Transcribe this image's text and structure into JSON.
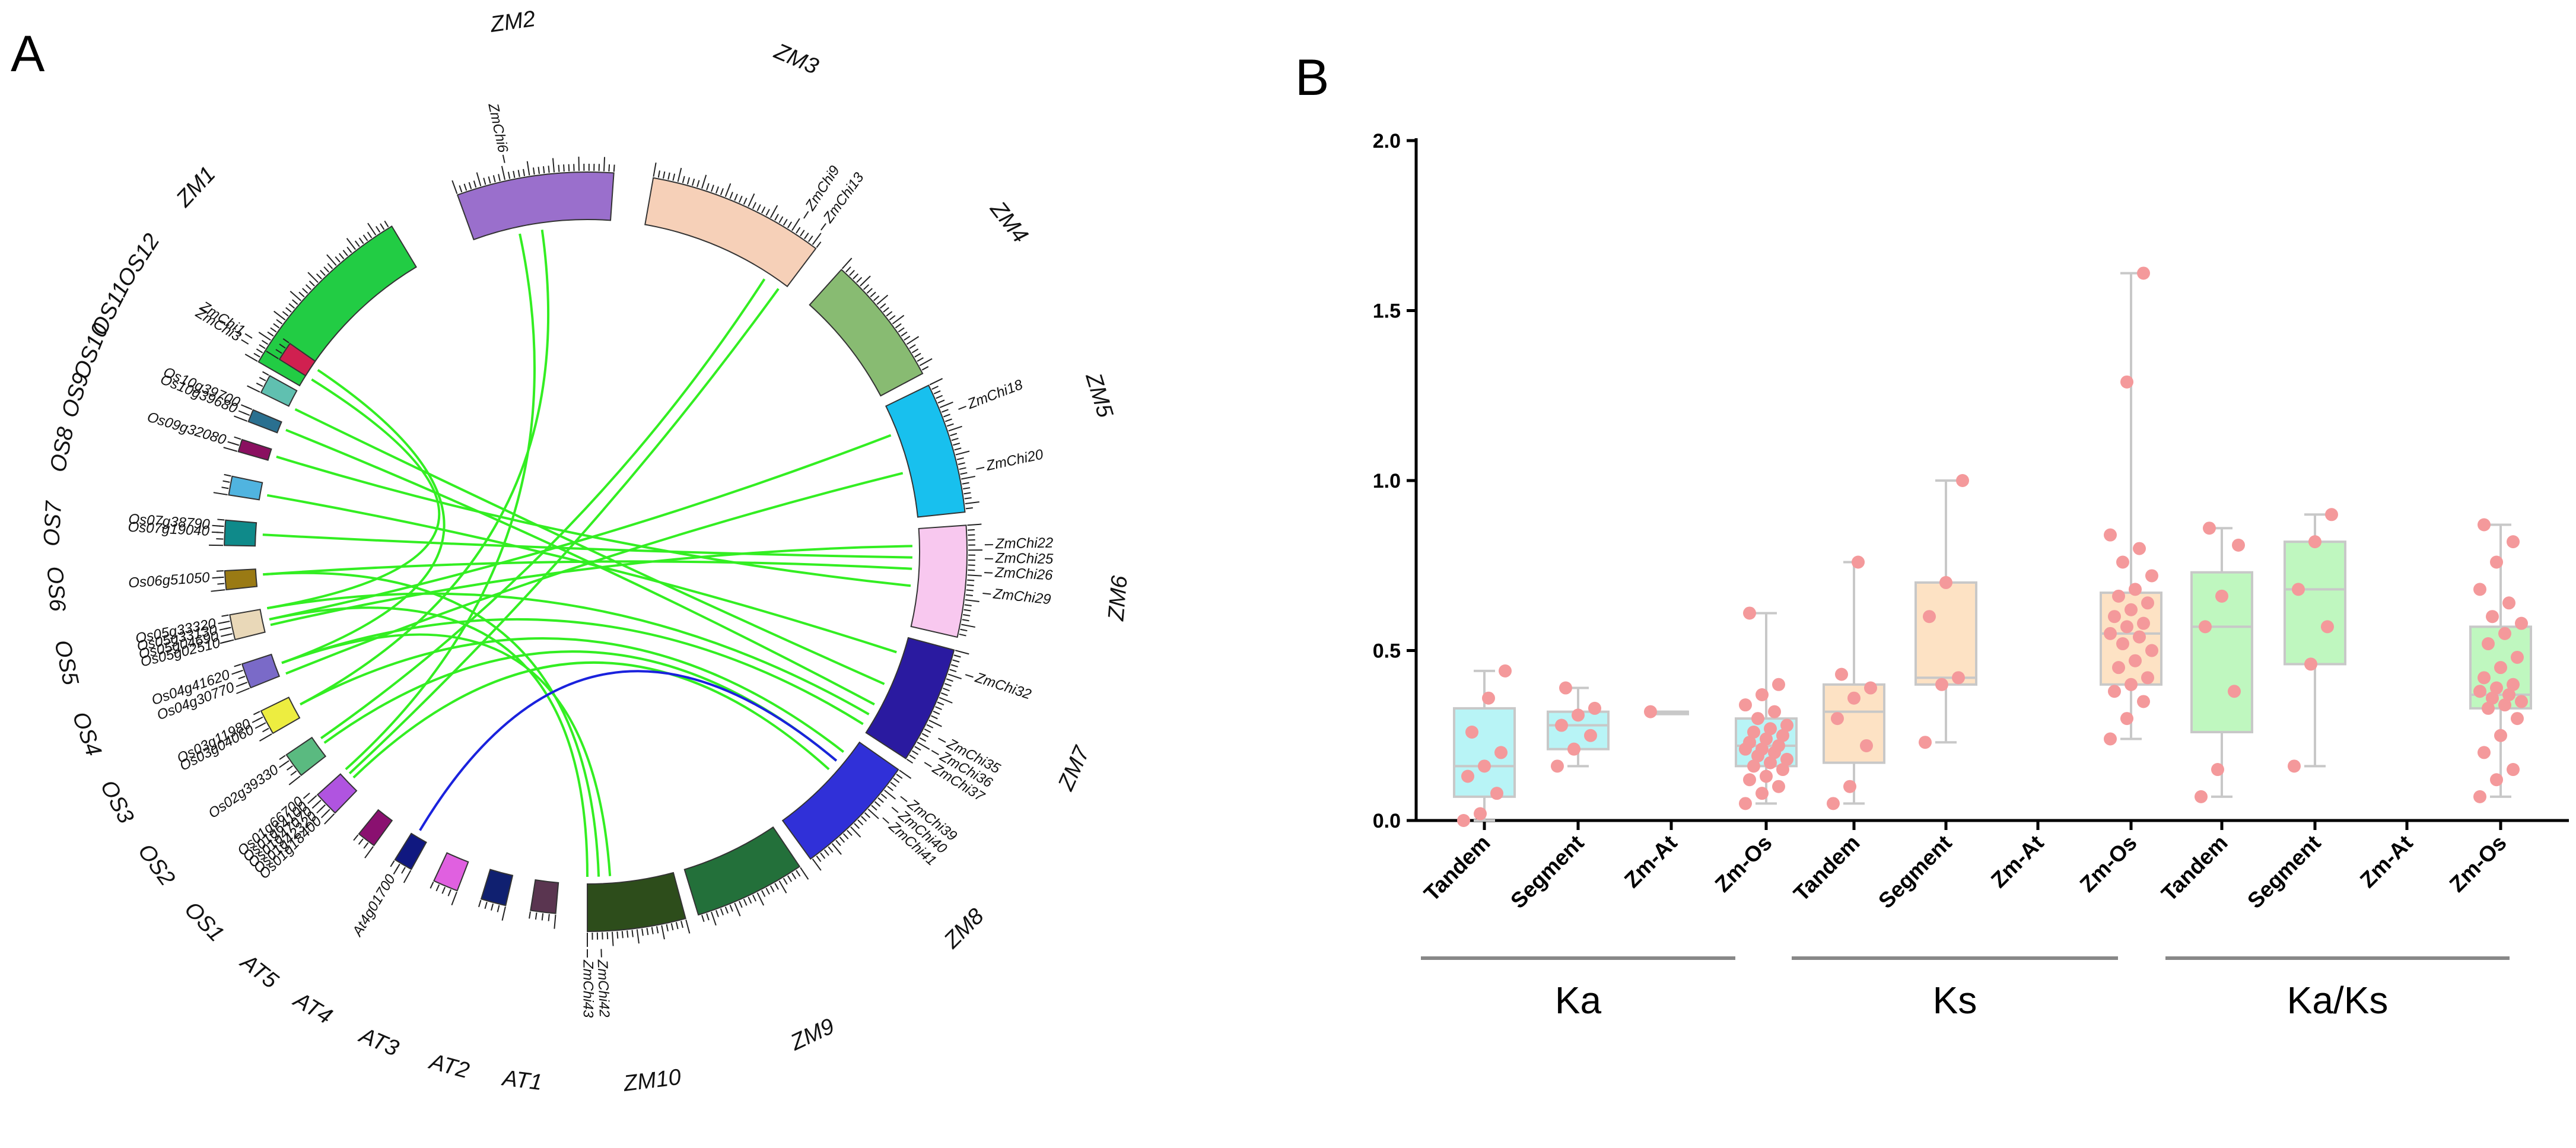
{
  "panel_a": {
    "letter": "A",
    "chromosomes": [
      {
        "name": "ZM1",
        "color": "#22cc44",
        "a0": 210,
        "a1": 239,
        "label_a": 223
      },
      {
        "name": "ZM2",
        "color": "#9a6fcc",
        "a0": 250,
        "a1": 274,
        "label_a": 262
      },
      {
        "name": "ZM3",
        "color": "#f6d0b8",
        "a0": 280,
        "a1": 307,
        "label_a": 293
      },
      {
        "name": "ZM4",
        "color": "#88bb72",
        "a0": 312,
        "a1": 332,
        "label_a": 322
      },
      {
        "name": "ZM5",
        "color": "#18c0ee",
        "a0": 334,
        "a1": 354,
        "label_a": 343
      },
      {
        "name": "ZM6",
        "color": "#f8c8ef",
        "a0": 356,
        "a1": 373,
        "label_a": 365
      },
      {
        "name": "ZM7",
        "color": "#2a1aa0",
        "a0": 375,
        "a1": 393,
        "label_a": 384
      },
      {
        "name": "ZM8",
        "color": "#3030d8",
        "a0": 395,
        "a1": 414,
        "label_a": 405
      },
      {
        "name": "ZM9",
        "color": "#23703a",
        "a0": 416,
        "a1": 433,
        "label_a": 425
      },
      {
        "name": "ZM10",
        "color": "#2d4d1b",
        "a0": 435,
        "a1": 450,
        "label_a": 443
      },
      {
        "name": "AT1",
        "color": "#5a3550",
        "a0": 455,
        "a1": 459,
        "label_a": 457
      },
      {
        "name": "AT2",
        "color": "#102070",
        "a0": 463,
        "a1": 467,
        "label_a": 465
      },
      {
        "name": "AT3",
        "color": "#e060e0",
        "a0": 471,
        "a1": 475,
        "label_a": 473
      },
      {
        "name": "AT4",
        "color": "#101880",
        "a0": 479,
        "a1": 482,
        "label_a": 481
      },
      {
        "name": "AT5",
        "color": "#8a1070",
        "a0": 486,
        "a1": 489,
        "label_a": 488
      },
      {
        "name": "OS1",
        "color": "#b054e0",
        "a0": 494,
        "a1": 498,
        "label_a": 496
      },
      {
        "name": "OS2",
        "color": "#5aba80",
        "a0": 502,
        "a1": 506,
        "label_a": 504
      },
      {
        "name": "OS3",
        "color": "#eded40",
        "a0": 510,
        "a1": 514,
        "label_a": 512
      },
      {
        "name": "OS4",
        "color": "#7a6ac8",
        "a0": 518,
        "a1": 522,
        "label_a": 520
      },
      {
        "name": "OS5",
        "color": "#e9d8b8",
        "a0": 526,
        "a1": 530,
        "label_a": 528
      },
      {
        "name": "OS6",
        "color": "#9a7a14",
        "a0": 534,
        "a1": 537,
        "label_a": 536
      },
      {
        "name": "OS7",
        "color": "#0f8a8a",
        "a0": 541,
        "a1": 545,
        "label_a": 543
      },
      {
        "name": "OS8",
        "color": "#50b4e0",
        "a0": 549,
        "a1": 552,
        "label_a": 551
      },
      {
        "name": "OS9",
        "color": "#8a1060",
        "a0": 556,
        "a1": 558,
        "label_a": 557
      },
      {
        "name": "OS10",
        "color": "#2a7090",
        "a0": 561,
        "a1": 563,
        "label_a": 562
      },
      {
        "name": "OS11",
        "color": "#60c0b0",
        "a0": 566,
        "a1": 569,
        "label_a": 567
      },
      {
        "name": "OS12",
        "color": "#d02050",
        "a0": 572,
        "a1": 575,
        "label_a": 573
      }
    ],
    "genes": [
      {
        "name": "ZmChi3",
        "a": 211.5
      },
      {
        "name": "ZmChi1",
        "a": 212.5
      },
      {
        "name": "ZmChi6",
        "a": 258
      },
      {
        "name": "ZmChi13",
        "a": 306
      },
      {
        "name": "ZmChi9",
        "a": 303
      },
      {
        "name": "ZmChi18",
        "a": 339
      },
      {
        "name": "ZmChi20",
        "a": 348
      },
      {
        "name": "ZmChi22",
        "a": 359
      },
      {
        "name": "ZmChi25",
        "a": 361
      },
      {
        "name": "ZmChi26",
        "a": 363
      },
      {
        "name": "ZmChi29",
        "a": 366
      },
      {
        "name": "ZmChi32",
        "a": 378
      },
      {
        "name": "ZmChi35",
        "a": 388
      },
      {
        "name": "ZmChi36",
        "a": 390
      },
      {
        "name": "ZmChi37",
        "a": 392
      },
      {
        "name": "ZmChi39",
        "a": 398
      },
      {
        "name": "ZmChi40",
        "a": 400
      },
      {
        "name": "ZmChi41",
        "a": 402
      },
      {
        "name": "ZmChi42",
        "a": 448
      },
      {
        "name": "ZmChi43",
        "a": 450
      },
      {
        "name": "At4g01700",
        "a": 481
      },
      {
        "name": "Os01g18400",
        "a": 495
      },
      {
        "name": "Os01g42320",
        "a": 496
      },
      {
        "name": "Os01g47070",
        "a": 497
      },
      {
        "name": "Os01g64100",
        "a": 498
      },
      {
        "name": "Os01g66700",
        "a": 499
      },
      {
        "name": "Os02g39330",
        "a": 505
      },
      {
        "name": "Os03g04060",
        "a": 512
      },
      {
        "name": "Os03g11980",
        "a": 513
      },
      {
        "name": "Os04g30770",
        "a": 519
      },
      {
        "name": "Os04g41620",
        "a": 521
      },
      {
        "name": "Os05g02510",
        "a": 526
      },
      {
        "name": "Os05g04690",
        "a": 527
      },
      {
        "name": "Os05g33130",
        "a": 528
      },
      {
        "name": "Os05g33320",
        "a": 529
      },
      {
        "name": "Os06g51050",
        "a": 536
      },
      {
        "name": "Os07g19040",
        "a": 543
      },
      {
        "name": "Os07g38790",
        "a": 544
      },
      {
        "name": "Os09g32080",
        "a": 557
      },
      {
        "name": "Os10g39680",
        "a": 562
      },
      {
        "name": "Os10g39700",
        "a": 563
      }
    ],
    "links": [
      {
        "from": 346,
        "to": 518,
        "color": "#33ee22"
      },
      {
        "from": 339,
        "to": 528,
        "color": "#33ee22"
      },
      {
        "from": 361,
        "to": 543,
        "color": "#33ee22"
      },
      {
        "from": 363,
        "to": 536,
        "color": "#33ee22"
      },
      {
        "from": 359,
        "to": 527,
        "color": "#33ee22"
      },
      {
        "from": 366,
        "to": 557,
        "color": "#33ee22"
      },
      {
        "from": 378,
        "to": 550,
        "color": "#33ee22"
      },
      {
        "from": 384,
        "to": 566,
        "color": "#33ee22"
      },
      {
        "from": 388,
        "to": 562,
        "color": "#33ee22"
      },
      {
        "from": 390,
        "to": 530,
        "color": "#33ee22"
      },
      {
        "from": 392,
        "to": 520,
        "color": "#33ee22"
      },
      {
        "from": 398,
        "to": 512,
        "color": "#33ee22"
      },
      {
        "from": 400,
        "to": 504,
        "color": "#33ee22"
      },
      {
        "from": 402,
        "to": 496,
        "color": "#33ee22"
      },
      {
        "from": 448,
        "to": 536,
        "color": "#33ee22"
      },
      {
        "from": 450,
        "to": 528,
        "color": "#33ee22"
      },
      {
        "from": 446,
        "to": 520,
        "color": "#33ee22"
      },
      {
        "from": 306,
        "to": 497,
        "color": "#33ee22"
      },
      {
        "from": 303,
        "to": 505,
        "color": "#33ee22"
      },
      {
        "from": 258,
        "to": 498,
        "color": "#33ee22"
      },
      {
        "from": 262,
        "to": 512,
        "color": "#33ee22"
      },
      {
        "from": 212,
        "to": 530,
        "color": "#33ee22"
      },
      {
        "from": 214,
        "to": 520,
        "color": "#33ee22"
      },
      {
        "from": 400,
        "to": 481,
        "color": "#1a22dd"
      }
    ]
  },
  "panel_b": {
    "letter": "B"
  },
  "chart_data": {
    "type": "box",
    "title": "",
    "xlabel": "",
    "ylabel": "",
    "ylim": [
      0,
      2.0
    ],
    "yticks": [
      "0.0",
      "0.5",
      "1.0",
      "1.5",
      "2.0"
    ],
    "point_color": "#f4999b",
    "groups": [
      {
        "label": "Ka",
        "categories": [
          "Tandem",
          "Segment",
          "Zm-At",
          "Zm-Os"
        ]
      },
      {
        "label": "Ks",
        "categories": [
          "Tandem",
          "Segment",
          "Zm-At",
          "Zm-Os"
        ]
      },
      {
        "label": "Ka/Ks",
        "categories": [
          "Tandem",
          "Segment",
          "Zm-At",
          "Zm-Os"
        ]
      }
    ],
    "series": [
      {
        "name": "Ka Tandem",
        "color": "#b8f4f6",
        "min": 0.0,
        "q1": 0.07,
        "median": 0.16,
        "q3": 0.33,
        "max": 0.44,
        "points": [
          0.0,
          0.02,
          0.08,
          0.13,
          0.16,
          0.2,
          0.26,
          0.36,
          0.44
        ]
      },
      {
        "name": "Ka Segment",
        "color": "#b8f4f6",
        "min": 0.16,
        "q1": 0.21,
        "median": 0.28,
        "q3": 0.32,
        "max": 0.39,
        "points": [
          0.16,
          0.21,
          0.25,
          0.28,
          0.31,
          0.33,
          0.39
        ]
      },
      {
        "name": "Ka Zm-At",
        "color": "#b8f4f6",
        "min": 0.32,
        "q1": 0.32,
        "median": 0.32,
        "q3": 0.32,
        "max": 0.32,
        "points": [
          0.32
        ]
      },
      {
        "name": "Ka Zm-Os",
        "color": "#b8f4f6",
        "min": 0.05,
        "q1": 0.16,
        "median": 0.22,
        "q3": 0.3,
        "max": 0.61,
        "points": [
          0.05,
          0.08,
          0.1,
          0.12,
          0.13,
          0.15,
          0.16,
          0.17,
          0.18,
          0.19,
          0.2,
          0.21,
          0.21,
          0.22,
          0.23,
          0.24,
          0.25,
          0.26,
          0.27,
          0.28,
          0.3,
          0.32,
          0.34,
          0.37,
          0.4,
          0.61
        ]
      },
      {
        "name": "Ks Tandem",
        "color": "#fde2c4",
        "min": 0.05,
        "q1": 0.17,
        "median": 0.32,
        "q3": 0.4,
        "max": 0.76,
        "points": [
          0.05,
          0.1,
          0.22,
          0.3,
          0.36,
          0.39,
          0.43,
          0.76
        ]
      },
      {
        "name": "Ks Segment",
        "color": "#fde2c4",
        "min": 0.23,
        "q1": 0.4,
        "median": 0.42,
        "q3": 0.7,
        "max": 1.0,
        "points": [
          0.23,
          0.4,
          0.42,
          0.6,
          0.7,
          1.0
        ]
      },
      {
        "name": "Ks Zm-Os",
        "color": "#fde2c4",
        "min": 0.24,
        "q1": 0.4,
        "median": 0.55,
        "q3": 0.67,
        "max": 1.61,
        "points": [
          0.24,
          0.3,
          0.35,
          0.38,
          0.4,
          0.42,
          0.45,
          0.47,
          0.5,
          0.52,
          0.54,
          0.55,
          0.57,
          0.58,
          0.6,
          0.62,
          0.64,
          0.66,
          0.68,
          0.72,
          0.76,
          0.8,
          0.84,
          1.29,
          1.61
        ]
      },
      {
        "name": "Ka/Ks Tandem",
        "color": "#bff7bf",
        "min": 0.07,
        "q1": 0.26,
        "median": 0.57,
        "q3": 0.73,
        "max": 0.86,
        "points": [
          0.07,
          0.15,
          0.38,
          0.57,
          0.66,
          0.81,
          0.86
        ]
      },
      {
        "name": "Ka/Ks Segment",
        "color": "#bff7bf",
        "min": 0.16,
        "q1": 0.46,
        "median": 0.68,
        "q3": 0.82,
        "max": 0.9,
        "points": [
          0.16,
          0.46,
          0.57,
          0.68,
          0.82,
          0.9
        ]
      },
      {
        "name": "Ka/Ks Zm-Os",
        "color": "#bff7bf",
        "min": 0.07,
        "q1": 0.33,
        "median": 0.37,
        "q3": 0.57,
        "max": 0.87,
        "points": [
          0.07,
          0.12,
          0.15,
          0.2,
          0.25,
          0.3,
          0.33,
          0.34,
          0.35,
          0.36,
          0.37,
          0.38,
          0.39,
          0.4,
          0.42,
          0.45,
          0.48,
          0.52,
          0.55,
          0.58,
          0.6,
          0.64,
          0.68,
          0.76,
          0.82,
          0.87
        ]
      }
    ]
  }
}
